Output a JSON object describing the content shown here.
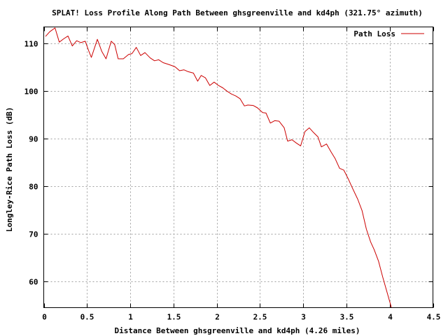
{
  "chart_data": {
    "type": "line",
    "title": "SPLAT! Loss Profile Along Path Between ghsgreenville and kd4ph (321.75° azimuth)",
    "xlabel": "Distance Between ghsgreenville and kd4ph (4.26 miles)",
    "ylabel": "Longley-Rice Path Loss (dB)",
    "xlim": [
      0,
      4.5
    ],
    "ylim": [
      54.5,
      113.5
    ],
    "xticks": [
      0,
      0.5,
      1,
      1.5,
      2,
      2.5,
      3,
      3.5,
      4,
      4.5
    ],
    "xtick_labels": [
      "0",
      "0.5",
      "1",
      "1.5",
      "2",
      "2.5",
      "3",
      "3.5",
      "4",
      "4.5"
    ],
    "yticks": [
      60,
      70,
      80,
      90,
      100,
      110
    ],
    "ytick_labels": [
      "60",
      "70",
      "80",
      "90",
      "100",
      "110"
    ],
    "grid": true,
    "legend_position": "top-right",
    "series": [
      {
        "name": "Path Loss",
        "color": "#cc0000",
        "x": [
          0.02,
          0.07,
          0.13,
          0.18,
          0.23,
          0.28,
          0.33,
          0.38,
          0.43,
          0.48,
          0.52,
          0.55,
          0.62,
          0.67,
          0.72,
          0.78,
          0.82,
          0.86,
          0.92,
          0.98,
          1.02,
          1.07,
          1.12,
          1.17,
          1.23,
          1.28,
          1.33,
          1.38,
          1.43,
          1.48,
          1.52,
          1.57,
          1.62,
          1.67,
          1.73,
          1.78,
          1.82,
          1.87,
          1.92,
          1.97,
          2.02,
          2.07,
          2.12,
          2.17,
          2.22,
          2.27,
          2.32,
          2.36,
          2.42,
          2.47,
          2.53,
          2.57,
          2.62,
          2.67,
          2.72,
          2.78,
          2.82,
          2.87,
          2.92,
          2.97,
          3.02,
          3.07,
          3.12,
          3.17,
          3.21,
          3.27,
          3.32,
          3.37,
          3.42,
          3.47,
          3.52,
          3.57,
          3.63,
          3.68,
          3.73,
          3.78,
          3.82,
          3.87,
          3.92,
          3.97,
          4.02,
          4.07,
          4.12,
          4.15
        ],
        "y": [
          111.5,
          112.5,
          113.3,
          110.3,
          111.0,
          111.6,
          109.5,
          110.6,
          110.2,
          110.5,
          108.5,
          107.1,
          110.9,
          108.4,
          106.8,
          110.5,
          109.8,
          106.8,
          106.8,
          107.7,
          107.9,
          109.2,
          107.5,
          108.1,
          107.0,
          106.4,
          106.6,
          106.0,
          105.7,
          105.4,
          105.1,
          104.3,
          104.5,
          104.1,
          103.8,
          102.1,
          103.3,
          102.8,
          101.2,
          101.9,
          101.2,
          100.7,
          100.0,
          99.4,
          99.0,
          98.4,
          96.9,
          97.1,
          97.0,
          96.5,
          95.5,
          95.4,
          93.3,
          93.8,
          93.7,
          92.3,
          89.5,
          89.8,
          89.1,
          88.5,
          91.5,
          92.3,
          91.3,
          90.4,
          88.3,
          88.9,
          87.3,
          85.8,
          83.8,
          83.4,
          81.6,
          79.6,
          77.3,
          74.9,
          71.0,
          68.3,
          66.7,
          64.3,
          60.9,
          57.7,
          54.5,
          54.5,
          54.5,
          54.5
        ]
      }
    ]
  }
}
